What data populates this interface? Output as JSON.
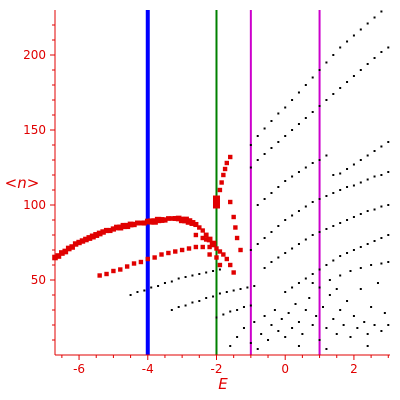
{
  "chart_data": {
    "type": "scatter",
    "title": "",
    "xlabel": "E",
    "ylabel": "<n>",
    "xlim": [
      -6.7,
      3.05
    ],
    "ylim": [
      0,
      230
    ],
    "xticks": [
      -6,
      -4,
      -2,
      0,
      2
    ],
    "xtick_labels": [
      "-6",
      "-4",
      "-2",
      "0",
      "2"
    ],
    "yticks": [
      50,
      100,
      150,
      200
    ],
    "ytick_labels": [
      "50",
      "100",
      "150",
      "200"
    ],
    "grid": false,
    "axis_color": "#e00000",
    "vertical_lines": [
      {
        "x": -4,
        "color": "#0000ff"
      },
      {
        "x": -2,
        "color": "#008000"
      },
      {
        "x": -1,
        "color": "#cc00cc"
      },
      {
        "x": 1,
        "color": "#cc00cc"
      }
    ],
    "series": [
      {
        "color": "#e00000",
        "points": [
          [
            -6.7,
            65
          ],
          [
            -6.6,
            66
          ],
          [
            -6.5,
            68
          ],
          [
            -6.4,
            69
          ],
          [
            -6.3,
            71
          ],
          [
            -6.2,
            72
          ],
          [
            -6.1,
            74
          ],
          [
            -6.0,
            75
          ],
          [
            -5.9,
            76
          ],
          [
            -5.8,
            77
          ],
          [
            -5.7,
            78
          ],
          [
            -5.6,
            79
          ],
          [
            -5.5,
            80
          ],
          [
            -5.4,
            81
          ],
          [
            -5.3,
            82
          ],
          [
            -5.2,
            83
          ],
          [
            -5.1,
            83
          ],
          [
            -5.0,
            84
          ],
          [
            -4.9,
            85
          ],
          [
            -4.8,
            85
          ],
          [
            -4.7,
            86
          ],
          [
            -4.6,
            86
          ],
          [
            -4.5,
            87
          ],
          [
            -4.4,
            87
          ],
          [
            -4.3,
            88
          ],
          [
            -4.2,
            88
          ],
          [
            -4.1,
            88
          ],
          [
            -4.0,
            89
          ],
          [
            -3.9,
            89
          ],
          [
            -3.8,
            89
          ],
          [
            -3.7,
            90
          ],
          [
            -3.6,
            90
          ],
          [
            -3.5,
            90
          ],
          [
            -3.4,
            91
          ],
          [
            -3.3,
            91
          ],
          [
            -3.2,
            91
          ],
          [
            -3.1,
            91
          ],
          [
            -3.0,
            90
          ],
          [
            -2.9,
            90
          ],
          [
            -2.8,
            89
          ],
          [
            -2.7,
            88
          ],
          [
            -2.6,
            87
          ],
          [
            -2.5,
            85
          ],
          [
            -2.4,
            83
          ],
          [
            -2.3,
            80
          ],
          [
            -2.2,
            77
          ],
          [
            -2.1,
            74
          ]
        ]
      },
      {
        "color": "#e00000",
        "points": [
          [
            -5.4,
            53
          ],
          [
            -5.2,
            54
          ],
          [
            -5.0,
            56
          ],
          [
            -4.8,
            57
          ],
          [
            -4.6,
            59
          ],
          [
            -4.4,
            61
          ],
          [
            -4.2,
            62
          ],
          [
            -4.0,
            64
          ],
          [
            -3.8,
            65
          ],
          [
            -3.6,
            67
          ],
          [
            -3.4,
            68
          ],
          [
            -3.2,
            69
          ],
          [
            -3.0,
            70
          ],
          [
            -2.8,
            71
          ],
          [
            -2.6,
            72
          ],
          [
            -2.4,
            72
          ],
          [
            -2.2,
            72
          ],
          [
            -2.0,
            71
          ],
          [
            -1.9,
            69
          ],
          [
            -1.8,
            67
          ],
          [
            -1.7,
            64
          ],
          [
            -1.6,
            60
          ],
          [
            -1.5,
            55
          ]
        ]
      },
      {
        "color": "#e00000",
        "points": [
          [
            -2.0,
            100
          ],
          [
            -2.0,
            104
          ],
          [
            -1.9,
            110
          ],
          [
            -1.85,
            115
          ],
          [
            -1.8,
            120
          ],
          [
            -1.75,
            124
          ],
          [
            -1.7,
            128
          ],
          [
            -1.6,
            132
          ],
          [
            -1.6,
            102
          ],
          [
            -1.5,
            92
          ],
          [
            -1.45,
            85
          ],
          [
            -1.4,
            78
          ],
          [
            -1.3,
            70
          ],
          [
            -2.3,
            77
          ],
          [
            -2.6,
            80
          ],
          [
            -2.4,
            78
          ],
          [
            -2.0,
            65
          ],
          [
            -2.2,
            67
          ],
          [
            -1.9,
            60
          ]
        ]
      },
      {
        "color": "#000000",
        "points": [
          [
            -4.5,
            40
          ],
          [
            -4.3,
            42
          ],
          [
            -4.1,
            43
          ],
          [
            -3.9,
            45
          ],
          [
            -3.7,
            46
          ],
          [
            -3.5,
            48
          ],
          [
            -3.3,
            49
          ],
          [
            -3.1,
            51
          ],
          [
            -2.9,
            52
          ],
          [
            -2.7,
            53
          ],
          [
            -2.5,
            54
          ],
          [
            -2.3,
            55
          ],
          [
            -2.1,
            56
          ],
          [
            -1.9,
            57
          ],
          [
            -3.3,
            30
          ],
          [
            -3.1,
            32
          ],
          [
            -2.9,
            33
          ],
          [
            -2.7,
            35
          ],
          [
            -2.5,
            36
          ],
          [
            -2.3,
            38
          ],
          [
            -2.1,
            39
          ],
          [
            -1.9,
            41
          ],
          [
            -1.7,
            42
          ],
          [
            -1.5,
            43
          ],
          [
            -1.3,
            44
          ],
          [
            -1.1,
            45
          ],
          [
            -0.9,
            46
          ],
          [
            -2.0,
            25
          ],
          [
            -1.8,
            27
          ],
          [
            -1.6,
            29
          ],
          [
            -1.4,
            30
          ],
          [
            -1.2,
            32
          ],
          [
            -1.0,
            33
          ],
          [
            -1.0,
            140
          ],
          [
            -0.8,
            146
          ],
          [
            -0.6,
            151
          ],
          [
            -0.4,
            156
          ],
          [
            -0.2,
            161
          ],
          [
            0.0,
            165
          ],
          [
            0.2,
            170
          ],
          [
            0.4,
            175
          ],
          [
            0.6,
            180
          ],
          [
            0.8,
            185
          ],
          [
            1.0,
            190
          ],
          [
            1.2,
            195
          ],
          [
            1.4,
            200
          ],
          [
            1.6,
            205
          ],
          [
            1.8,
            209
          ],
          [
            2.0,
            213
          ],
          [
            2.2,
            217
          ],
          [
            2.4,
            221
          ],
          [
            2.6,
            225
          ],
          [
            2.8,
            229
          ],
          [
            -1.0,
            125
          ],
          [
            -0.8,
            130
          ],
          [
            -0.6,
            134
          ],
          [
            -0.4,
            138
          ],
          [
            -0.2,
            142
          ],
          [
            0.0,
            146
          ],
          [
            0.2,
            150
          ],
          [
            0.4,
            154
          ],
          [
            0.6,
            158
          ],
          [
            0.8,
            162
          ],
          [
            1.0,
            166
          ],
          [
            1.2,
            170
          ],
          [
            1.4,
            174
          ],
          [
            1.6,
            178
          ],
          [
            1.8,
            182
          ],
          [
            2.0,
            186
          ],
          [
            2.2,
            190
          ],
          [
            2.4,
            194
          ],
          [
            2.6,
            198
          ],
          [
            2.8,
            202
          ],
          [
            3.0,
            205
          ],
          [
            -0.8,
            100
          ],
          [
            -0.6,
            104
          ],
          [
            -0.4,
            108
          ],
          [
            -0.2,
            112
          ],
          [
            0.0,
            116
          ],
          [
            0.2,
            119
          ],
          [
            0.4,
            122
          ],
          [
            0.6,
            125
          ],
          [
            0.8,
            128
          ],
          [
            1.0,
            130
          ],
          [
            1.2,
            133
          ],
          [
            1.4,
            120
          ],
          [
            1.6,
            121
          ],
          [
            1.8,
            124
          ],
          [
            2.0,
            127
          ],
          [
            2.2,
            130
          ],
          [
            2.4,
            133
          ],
          [
            2.6,
            136
          ],
          [
            2.8,
            139
          ],
          [
            3.0,
            142
          ],
          [
            -1.0,
            70
          ],
          [
            -0.8,
            74
          ],
          [
            -0.6,
            78
          ],
          [
            -0.4,
            82
          ],
          [
            -0.2,
            86
          ],
          [
            0.0,
            90
          ],
          [
            0.2,
            93
          ],
          [
            0.4,
            96
          ],
          [
            0.6,
            99
          ],
          [
            0.8,
            102
          ],
          [
            1.0,
            104
          ],
          [
            1.2,
            106
          ],
          [
            1.4,
            108
          ],
          [
            1.6,
            110
          ],
          [
            1.8,
            112
          ],
          [
            2.0,
            113
          ],
          [
            2.2,
            115
          ],
          [
            2.4,
            117
          ],
          [
            2.6,
            119
          ],
          [
            2.8,
            120
          ],
          [
            3.0,
            122
          ],
          [
            -0.6,
            58
          ],
          [
            -0.4,
            62
          ],
          [
            -0.2,
            65
          ],
          [
            0.0,
            68
          ],
          [
            0.2,
            71
          ],
          [
            0.4,
            74
          ],
          [
            0.6,
            77
          ],
          [
            0.8,
            80
          ],
          [
            1.0,
            82
          ],
          [
            1.2,
            84
          ],
          [
            1.4,
            86
          ],
          [
            1.6,
            88
          ],
          [
            1.8,
            90
          ],
          [
            2.0,
            92
          ],
          [
            2.2,
            94
          ],
          [
            2.4,
            96
          ],
          [
            2.6,
            97
          ],
          [
            2.8,
            99
          ],
          [
            3.0,
            100
          ],
          [
            0.0,
            42
          ],
          [
            0.2,
            45
          ],
          [
            0.4,
            48
          ],
          [
            0.6,
            51
          ],
          [
            0.8,
            54
          ],
          [
            1.0,
            57
          ],
          [
            1.2,
            60
          ],
          [
            1.4,
            63
          ],
          [
            1.6,
            66
          ],
          [
            1.8,
            68
          ],
          [
            2.0,
            70
          ],
          [
            2.2,
            72
          ],
          [
            2.4,
            74
          ],
          [
            2.6,
            76
          ],
          [
            2.8,
            78
          ],
          [
            3.0,
            80
          ],
          [
            1.0,
            45
          ],
          [
            1.3,
            50
          ],
          [
            1.6,
            53
          ],
          [
            1.9,
            56
          ],
          [
            2.2,
            58
          ],
          [
            2.5,
            60
          ],
          [
            2.8,
            61
          ],
          [
            3.0,
            62
          ],
          [
            -1.4,
            12
          ],
          [
            -1.2,
            18
          ],
          [
            -1.0,
            8
          ],
          [
            -0.9,
            22
          ],
          [
            -0.7,
            14
          ],
          [
            -0.6,
            26
          ],
          [
            -0.5,
            10
          ],
          [
            -0.4,
            20
          ],
          [
            -0.3,
            30
          ],
          [
            -0.2,
            16
          ],
          [
            -0.1,
            24
          ],
          [
            0.0,
            12
          ],
          [
            0.1,
            28
          ],
          [
            0.2,
            18
          ],
          [
            0.3,
            34
          ],
          [
            0.4,
            22
          ],
          [
            0.5,
            14
          ],
          [
            0.6,
            30
          ],
          [
            0.7,
            38
          ],
          [
            0.8,
            20
          ],
          [
            0.9,
            26
          ],
          [
            1.0,
            10
          ],
          [
            1.1,
            32
          ],
          [
            1.2,
            18
          ],
          [
            1.3,
            40
          ],
          [
            1.4,
            24
          ],
          [
            1.5,
            14
          ],
          [
            1.6,
            30
          ],
          [
            1.7,
            20
          ],
          [
            1.8,
            36
          ],
          [
            1.9,
            12
          ],
          [
            2.0,
            26
          ],
          [
            2.1,
            18
          ],
          [
            2.2,
            44
          ],
          [
            2.3,
            22
          ],
          [
            2.4,
            14
          ],
          [
            2.5,
            32
          ],
          [
            2.6,
            20
          ],
          [
            2.7,
            48
          ],
          [
            2.8,
            16
          ],
          [
            2.9,
            28
          ],
          [
            3.0,
            20
          ],
          [
            -1.6,
            6
          ],
          [
            -0.8,
            4
          ],
          [
            0.4,
            6
          ],
          [
            1.2,
            4
          ],
          [
            2.4,
            6
          ],
          [
            0.8,
            48
          ],
          [
            1.5,
            44
          ]
        ]
      }
    ]
  }
}
